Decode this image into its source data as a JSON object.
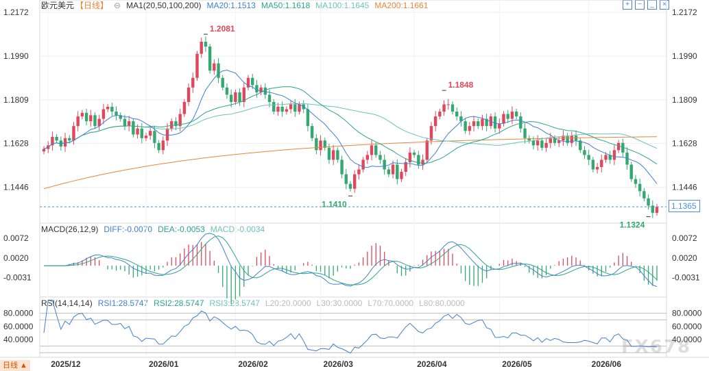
{
  "header": {
    "symbol": "欧元美元",
    "period": "【日线】",
    "ma_label": "MA1(20,50,100,200)",
    "ma20": "MA20:1.1513",
    "ma50": "MA50:1.1618",
    "ma100": "MA100:1.1645",
    "ma200": "MA200:1.1661"
  },
  "colors": {
    "up": "#e0475a",
    "down": "#33a870",
    "ma20": "#3f7fd1",
    "ma50": "#2aa58a",
    "ma100": "#6cc3b8",
    "ma200": "#e8863a",
    "diff": "#3f7fd1",
    "dea": "#2aa58a",
    "rsi": "#3f7fd1"
  },
  "toolbar_icons": [
    "zoom-in-icon",
    "zoom-out-icon",
    "minimize-icon",
    "close-icon"
  ],
  "current_price": "1.1365",
  "macd_header": {
    "label": "MACD(26,12,9)",
    "diff": "DIFF:-0.0070",
    "dea": "DEA:-0.0053",
    "macd": "MACD:-0.0034"
  },
  "rsi_header": {
    "label": "RSI(14,14,14)",
    "rsi1": "RSI1:28.5747",
    "rsi2": "RSI2:28.5747",
    "rsi3": "RSI3:28.5747",
    "l20": "L20:20.0000",
    "l30": "L30:30.0000",
    "l70": "L70:70.0000",
    "l80": "L80:80.0000"
  },
  "watermark": "FX678",
  "period_flag": "日线 ▲",
  "chart_data": {
    "type": "candlestick",
    "price_axis": {
      "ticks": [
        "1.2172",
        "1.1990",
        "1.1809",
        "1.1628",
        "1.1446"
      ],
      "range": [
        1.13,
        1.2172
      ]
    },
    "macd_axis": {
      "ticks": [
        "0.0072",
        "0.0020",
        "-0.0031"
      ],
      "range": [
        -0.0075,
        0.009
      ]
    },
    "rsi_axis": {
      "ticks": [
        "80.0000",
        "60.0000",
        "40.0000"
      ],
      "range": [
        15,
        90
      ]
    },
    "x_ticks": [
      {
        "label": "2025/12",
        "i": 1
      },
      {
        "label": "2026/01",
        "i": 24
      },
      {
        "label": "2026/02",
        "i": 45
      },
      {
        "label": "2026/03",
        "i": 65
      },
      {
        "label": "2026/04",
        "i": 87
      },
      {
        "label": "2026/05",
        "i": 107
      },
      {
        "label": "2026/06",
        "i": 128
      }
    ],
    "annotations": [
      {
        "text": "1.2081",
        "value": 1.2081,
        "i": 38,
        "color": "up"
      },
      {
        "text": "1.1848",
        "value": 1.1848,
        "i": 94,
        "color": "up"
      },
      {
        "text": "1.1410",
        "value": 1.141,
        "i": 72,
        "color": "down"
      },
      {
        "text": "1.1324",
        "value": 1.1324,
        "i": 142,
        "color": "down"
      }
    ],
    "close_series": [
      1.1605,
      1.162,
      1.1655,
      1.164,
      1.1615,
      1.165,
      1.164,
      1.17,
      1.174,
      1.1755,
      1.172,
      1.1745,
      1.17,
      1.173,
      1.177,
      1.178,
      1.176,
      1.1745,
      1.173,
      1.17,
      1.172,
      1.1665,
      1.169,
      1.165,
      1.166,
      1.168,
      1.163,
      1.16,
      1.164,
      1.169,
      1.172,
      1.17,
      1.175,
      1.18,
      1.186,
      1.19,
      1.2,
      1.205,
      1.203,
      1.193,
      1.196,
      1.19,
      1.186,
      1.183,
      1.18,
      1.184,
      1.18,
      1.186,
      1.19,
      1.187,
      1.184,
      1.186,
      1.183,
      1.18,
      1.176,
      1.178,
      1.176,
      1.177,
      1.179,
      1.176,
      1.179,
      1.177,
      1.17,
      1.165,
      1.16,
      1.164,
      1.161,
      1.156,
      1.16,
      1.156,
      1.15,
      1.146,
      1.144,
      1.15,
      1.152,
      1.156,
      1.158,
      1.162,
      1.158,
      1.156,
      1.152,
      1.15,
      1.154,
      1.148,
      1.151,
      1.155,
      1.159,
      1.158,
      1.154,
      1.156,
      1.164,
      1.17,
      1.174,
      1.176,
      1.179,
      1.179,
      1.176,
      1.174,
      1.172,
      1.168,
      1.17,
      1.172,
      1.17,
      1.173,
      1.17,
      1.174,
      1.169,
      1.171,
      1.175,
      1.173,
      1.176,
      1.174,
      1.169,
      1.165,
      1.164,
      1.162,
      1.164,
      1.161,
      1.163,
      1.165,
      1.163,
      1.164,
      1.166,
      1.163,
      1.166,
      1.164,
      1.16,
      1.158,
      1.156,
      1.152,
      1.153,
      1.156,
      1.158,
      1.156,
      1.16,
      1.163,
      1.159,
      1.154,
      1.148,
      1.146,
      1.143,
      1.14,
      1.137,
      1.134,
      1.1365
    ],
    "macd_hist_desc": "red bars above zero Dec–Jan, green bars below zero Feb–Mar, red bars Apr, mixed May, green Jun"
  }
}
